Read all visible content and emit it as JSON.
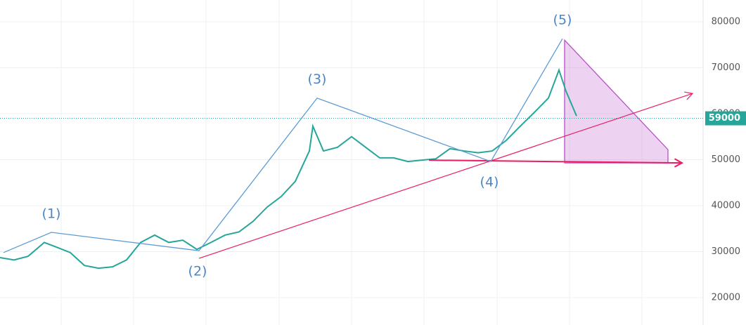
{
  "chart_data": {
    "type": "line",
    "xlim": [
      0,
      1000
    ],
    "ylim": [
      14050,
      84730
    ],
    "yticks": [
      20000,
      30000,
      40000,
      50000,
      60000,
      70000,
      80000
    ],
    "grid": true,
    "series": [
      {
        "color": "#26a69a",
        "x": [
          0,
          20,
          40,
          63,
          80,
          100,
          120,
          140,
          160,
          180,
          200,
          220,
          240,
          260,
          280,
          300,
          320,
          340,
          360,
          380,
          400,
          420,
          440,
          445,
          460,
          480,
          500,
          520,
          540,
          560,
          580,
          600,
          620,
          640,
          660,
          680,
          700,
          720,
          740,
          760,
          780,
          795,
          805,
          820
        ],
        "values": [
          28700,
          28200,
          29000,
          32000,
          31000,
          29800,
          27000,
          26400,
          26700,
          28200,
          32000,
          33600,
          32000,
          32500,
          30500,
          32000,
          33600,
          34300,
          36600,
          39700,
          42000,
          45300,
          51900,
          57300,
          51900,
          52700,
          55000,
          52700,
          50400,
          50400,
          49600,
          49900,
          50200,
          52400,
          51900,
          51500,
          51900,
          54200,
          57300,
          60300,
          63400,
          69500,
          64900,
          59500
        ]
      }
    ],
    "last_price": 59000,
    "wave_color": "#5b9bd5",
    "wave_start": {
      "x": 5,
      "y": 29800
    },
    "waves": [
      {
        "label": "(1)",
        "x": 73,
        "y": 34200
      },
      {
        "label": "(2)",
        "x": 283,
        "y": 30200
      },
      {
        "label": "(3)",
        "x": 451,
        "y": 63400
      },
      {
        "label": "(4)",
        "x": 698,
        "y": 49600
      },
      {
        "label": "(5)",
        "x": 800,
        "y": 76300
      }
    ],
    "trendline": {
      "color": "#e91e63",
      "x": [
        283,
        985
      ],
      "y": [
        28550,
        64400
      ]
    },
    "support": {
      "color": "#e91e63",
      "x": [
        610,
        970
      ],
      "y": [
        49900,
        49300
      ]
    },
    "target_zone": {
      "color": "#b94fc8",
      "x": [
        803,
        950,
        950,
        803
      ],
      "y": [
        76000,
        52200,
        49300,
        49300
      ]
    }
  }
}
